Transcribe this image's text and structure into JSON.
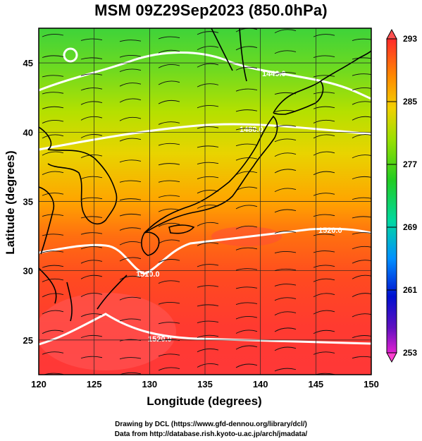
{
  "title": "MSM 09Z29Sep2023 (850.0hPa)",
  "xlabel": "Longitude (degrees)",
  "ylabel": "Latitude  (degrees)",
  "credits": [
    "Drawing by DCL (https://www.gfd-dennou.org/library/dcl/)",
    "Data from http://database.rish.kyoto-u.ac.jp/arch/jmadata/"
  ],
  "map": {
    "lon_range": [
      120,
      150
    ],
    "lat_range": [
      22.5,
      47.5
    ],
    "lon_ticks": [
      "120",
      "125",
      "130",
      "135",
      "140",
      "145",
      "150"
    ],
    "lat_ticks": [
      "25",
      "30",
      "35",
      "40",
      "45"
    ],
    "grid": true,
    "field": "temperature (K), shaded",
    "overlays": [
      "coastlines",
      "streamlines",
      "geopotential height contours (white)"
    ],
    "contour_labels": [
      "1440.0",
      "1480.0",
      "1520.0",
      "1510.0",
      "1520.0"
    ]
  },
  "colorbar": {
    "labels": [
      "293",
      "285",
      "277",
      "269",
      "261",
      "253"
    ],
    "colors": [
      "#ff2a2a",
      "#ff8a00",
      "#f2d000",
      "#9be000",
      "#22cc22",
      "#00d8a0",
      "#0090ff",
      "#0010d0",
      "#6010c0",
      "#e020d0"
    ]
  }
}
